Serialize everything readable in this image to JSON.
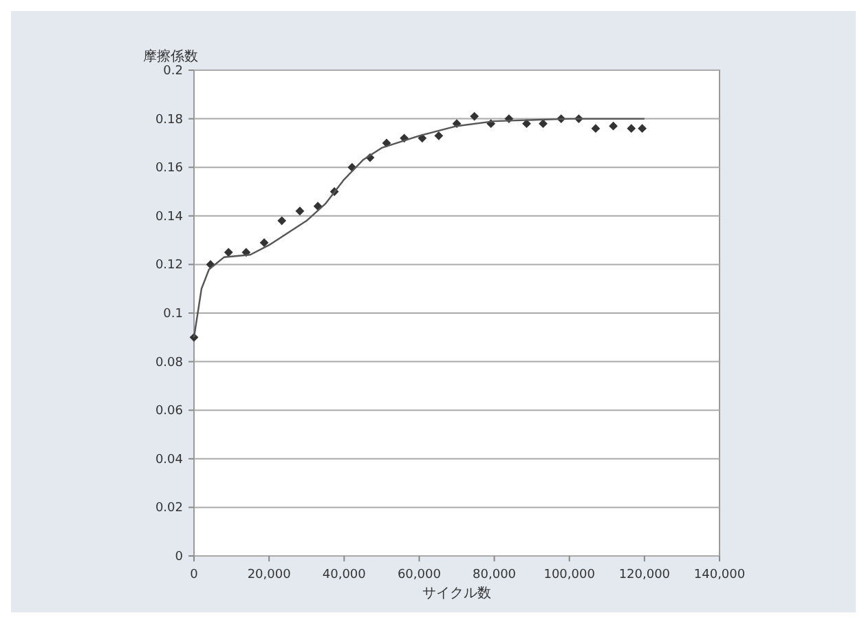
{
  "chart_data": {
    "type": "scatter",
    "ylabel": "摩擦係数",
    "xlabel": "サイクル数",
    "xlim": [
      0,
      140000
    ],
    "ylim": [
      0,
      0.2
    ],
    "xticks": [
      0,
      {
        "value": 20000,
        "label": "20,000"
      },
      {
        "value": 40000,
        "label": "40,000"
      },
      {
        "value": 60000,
        "label": "60,000"
      },
      {
        "value": 80000,
        "label": "80,000"
      },
      {
        "value": 100000,
        "label": "100,000"
      },
      {
        "value": 120000,
        "label": "120,000"
      },
      {
        "value": 140000,
        "label": "140,000"
      }
    ],
    "yticks": [
      0,
      0.02,
      0.04,
      0.06,
      0.08,
      0.1,
      0.12,
      0.14,
      0.16,
      0.18,
      0.2
    ],
    "grid": "y",
    "series": [
      {
        "marker": "diamond",
        "color": "#333333",
        "x": [
          0,
          4400,
          9200,
          13900,
          18700,
          23400,
          28200,
          33000,
          37400,
          42100,
          46900,
          51300,
          56000,
          60800,
          65200,
          70000,
          74700,
          79100,
          83900,
          88600,
          93000,
          97800,
          102500,
          107000,
          111700,
          116500,
          119400
        ],
        "values": [
          0.09,
          0.12,
          0.125,
          0.125,
          0.129,
          0.138,
          0.142,
          0.144,
          0.15,
          0.16,
          0.164,
          0.17,
          0.172,
          0.172,
          0.173,
          0.178,
          0.181,
          0.178,
          0.18,
          0.178,
          0.178,
          0.18,
          0.18,
          0.176,
          0.177,
          0.176,
          0.176
        ]
      },
      {
        "type": "line",
        "color": "#555555",
        "x": [
          0,
          2000,
          4000,
          8000,
          15000,
          20000,
          25000,
          30000,
          35000,
          40000,
          45000,
          50000,
          60000,
          70000,
          80000,
          100000,
          120000
        ],
        "values": [
          0.09,
          0.11,
          0.118,
          0.123,
          0.124,
          0.128,
          0.133,
          0.138,
          0.145,
          0.155,
          0.163,
          0.168,
          0.173,
          0.177,
          0.179,
          0.18,
          0.18
        ]
      }
    ]
  }
}
